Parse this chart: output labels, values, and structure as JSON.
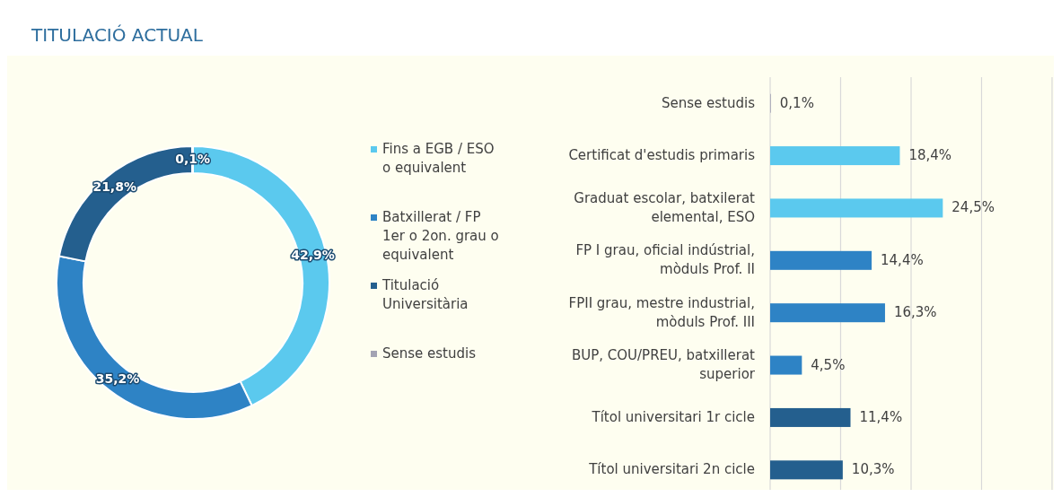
{
  "chart_data": [
    {
      "type": "donut",
      "title": "TITULACIÓ ACTUAL",
      "categories": [
        "Fins a EGB / ESO o equivalent",
        "Batxillerat / FP 1er o 2on. grau o equivalent",
        "Titulació Universitària",
        "Sense estudis"
      ],
      "values": [
        42.9,
        35.2,
        21.8,
        0.1
      ],
      "colors": [
        "#5bc9ee",
        "#2e83c5",
        "#245f8e",
        "#a3a3b3"
      ],
      "value_labels": [
        "42,9%",
        "35,2%",
        "21,8%",
        "0,1%"
      ],
      "legend": "right"
    },
    {
      "type": "bar",
      "orientation": "horizontal",
      "categories": [
        "Sense estudis",
        "Certificat d'estudis primaris",
        "Graduat escolar, batxilerat elemental, ESO",
        "FP I grau, oficial indústrial, mòduls Prof. II",
        "FPII grau, mestre industrial, mòduls Prof. III",
        "BUP, COU/PREU, batxillerat superior",
        "Títol universitari 1r cicle",
        "Títol universitari 2n cicle"
      ],
      "values": [
        0.1,
        18.4,
        24.5,
        14.4,
        16.3,
        4.5,
        11.4,
        10.3
      ],
      "colors": [
        "#a3a3b3",
        "#5bc9ee",
        "#5bc9ee",
        "#2e83c5",
        "#2e83c5",
        "#2e83c5",
        "#245f8e",
        "#245f8e"
      ],
      "value_labels": [
        "0,1%",
        "18,4%",
        "24,5%",
        "14,4%",
        "16,3%",
        "4,5%",
        "11,4%",
        "10,3%"
      ],
      "xlim": [
        0,
        40
      ],
      "xticks": [
        {
          "value": 0,
          "label": null
        },
        {
          "value": 10,
          "label": null
        },
        {
          "value": 20,
          "label": null
        },
        {
          "value": 30,
          "label": null
        },
        {
          "value": 40,
          "label": null
        }
      ],
      "grid": "x",
      "tick_labels": "y"
    }
  ]
}
